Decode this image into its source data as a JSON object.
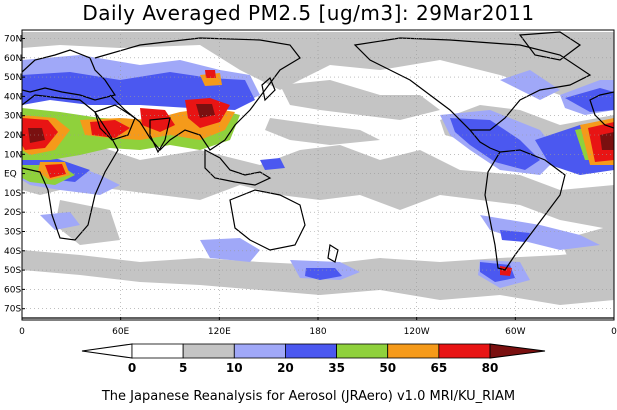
{
  "title": "Daily Averaged PM2.5 [ug/m3]: 29Mar2011",
  "footer": "The Japanese Reanalysis for Aerosol (JRAero) v1.0 MRI/KU_RIAM",
  "map": {
    "lat_labels": [
      "70N",
      "60N",
      "50N",
      "40N",
      "30N",
      "20N",
      "10N",
      "EQ",
      "10S",
      "20S",
      "30S",
      "40S",
      "50S",
      "60S",
      "70S"
    ],
    "lon_labels": [
      "0",
      "60E",
      "120E",
      "180",
      "120W",
      "60W",
      "0"
    ]
  },
  "colorbar": {
    "thresholds": [
      "0",
      "5",
      "10",
      "20",
      "35",
      "50",
      "65",
      "80"
    ],
    "colors": [
      "#ffffff",
      "#ffffff",
      "#c4c4c4",
      "#a0a8f8",
      "#4b58f0",
      "#8fd13c",
      "#f59a1a",
      "#e81414",
      "#7a1010"
    ]
  },
  "colors": {
    "gray": "#c4c4c4",
    "light_blue": "#a0a8f8",
    "blue": "#4b58f0",
    "green": "#8fd13c",
    "orange": "#f59a1a",
    "red": "#e81414",
    "dark_red": "#7a1010",
    "coast": "#000000"
  }
}
